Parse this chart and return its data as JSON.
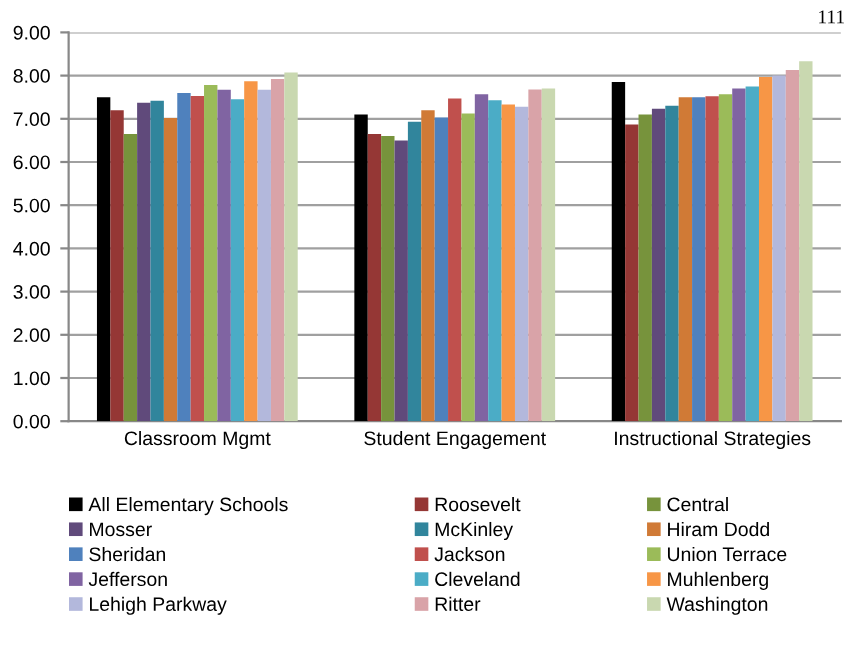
{
  "chart_data": {
    "type": "bar",
    "categories": [
      "Classroom Mgmt",
      "Student Engagement",
      "Instructional Strategies"
    ],
    "ylim": [
      0,
      9
    ],
    "yticks": [
      {
        "value": 0,
        "label": "0.00"
      },
      {
        "value": 1,
        "label": "1.00"
      },
      {
        "value": 2,
        "label": "2.00"
      },
      {
        "value": 3,
        "label": "3.00"
      },
      {
        "value": 4,
        "label": "4.00"
      },
      {
        "value": 5,
        "label": "5.00"
      },
      {
        "value": 6,
        "label": "6.00"
      },
      {
        "value": 7,
        "label": "7.00"
      },
      {
        "value": 8,
        "label": "8.00"
      },
      {
        "value": 9,
        "label": "9.00"
      }
    ],
    "grid": "y",
    "legend": "bottom",
    "annotations": [
      "111"
    ],
    "series": [
      {
        "name": "All Elementary Schools",
        "color": "#000000",
        "values": [
          7.5,
          7.1,
          7.85
        ]
      },
      {
        "name": "Roosevelt",
        "color": "#953735",
        "values": [
          7.2,
          6.65,
          6.87
        ]
      },
      {
        "name": "Central",
        "color": "#77933c",
        "values": [
          6.65,
          6.6,
          7.1
        ]
      },
      {
        "name": "Mosser",
        "color": "#604a7b",
        "values": [
          7.37,
          6.5,
          7.23
        ]
      },
      {
        "name": "McKinley",
        "color": "#31859c",
        "values": [
          7.42,
          6.93,
          7.3
        ]
      },
      {
        "name": "Hiram Dodd",
        "color": "#d07a36",
        "values": [
          7.02,
          7.2,
          7.5
        ]
      },
      {
        "name": "Sheridan",
        "color": "#4f81bd",
        "values": [
          7.6,
          7.03,
          7.5
        ]
      },
      {
        "name": "Jackson",
        "color": "#c0504d",
        "values": [
          7.53,
          7.47,
          7.52
        ]
      },
      {
        "name": "Union Terrace",
        "color": "#9bbb59",
        "values": [
          7.78,
          7.12,
          7.57
        ]
      },
      {
        "name": "Jefferson",
        "color": "#8064a2",
        "values": [
          7.67,
          7.57,
          7.7
        ]
      },
      {
        "name": "Cleveland",
        "color": "#4bacc6",
        "values": [
          7.45,
          7.43,
          7.75
        ]
      },
      {
        "name": "Muhlenberg",
        "color": "#f79646",
        "values": [
          7.87,
          7.33,
          7.97
        ]
      },
      {
        "name": "Lehigh Parkway",
        "color": "#b3b8dc",
        "values": [
          7.67,
          7.28,
          8.0
        ]
      },
      {
        "name": "Ritter",
        "color": "#d9a3a8",
        "values": [
          7.92,
          7.68,
          8.13
        ]
      },
      {
        "name": "Washington",
        "color": "#c9d8b0",
        "values": [
          8.07,
          7.7,
          8.33
        ]
      }
    ]
  }
}
